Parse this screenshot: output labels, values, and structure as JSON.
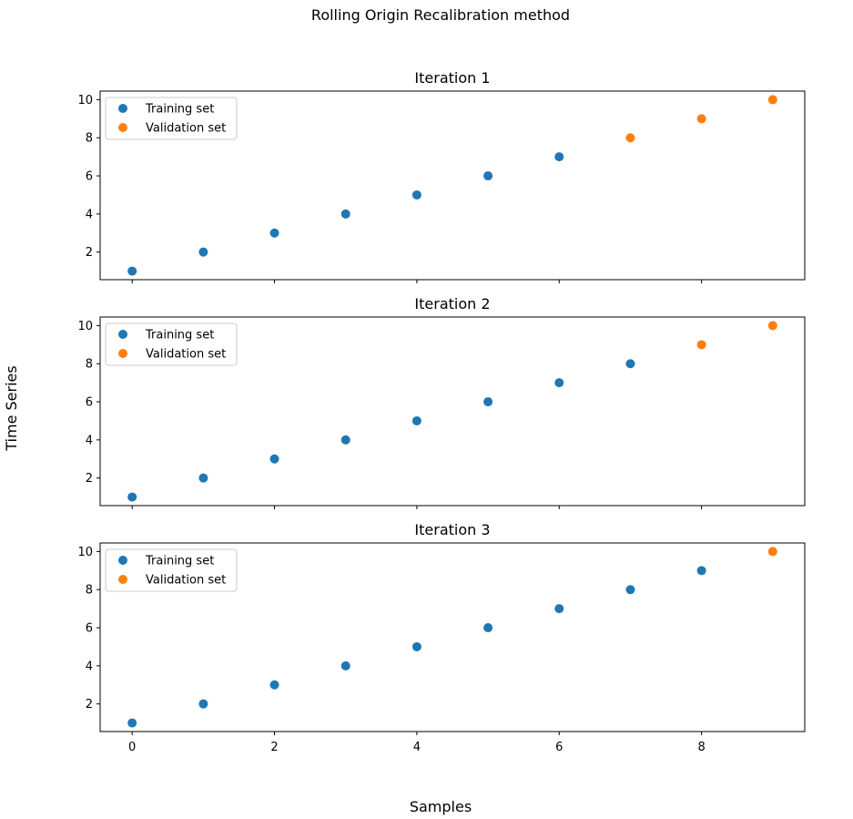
{
  "chart_data": {
    "type": "scatter",
    "title": "Rolling Origin Recalibration method",
    "xlabel": "Samples",
    "ylabel": "Time Series",
    "xlim": [
      -0.45,
      9.45
    ],
    "ylim": [
      0.55,
      10.45
    ],
    "xticks": [
      0,
      2,
      4,
      6,
      8
    ],
    "yticks": [
      2,
      4,
      6,
      8,
      10
    ],
    "grid": false,
    "legend_placement": "top-left",
    "colors": {
      "training": "#1f77b4",
      "validation": "#ff7f0e"
    },
    "subplots": [
      {
        "title": "Iteration 1",
        "series": [
          {
            "name": "Training set",
            "x": [
              0,
              1,
              2,
              3,
              4,
              5,
              6
            ],
            "y": [
              1,
              2,
              3,
              4,
              5,
              6,
              7
            ]
          },
          {
            "name": "Validation set",
            "x": [
              7,
              8,
              9
            ],
            "y": [
              8,
              9,
              10
            ]
          }
        ]
      },
      {
        "title": "Iteration 2",
        "series": [
          {
            "name": "Training set",
            "x": [
              0,
              1,
              2,
              3,
              4,
              5,
              6,
              7
            ],
            "y": [
              1,
              2,
              3,
              4,
              5,
              6,
              7,
              8
            ]
          },
          {
            "name": "Validation set",
            "x": [
              8,
              9
            ],
            "y": [
              9,
              10
            ]
          }
        ]
      },
      {
        "title": "Iteration 3",
        "series": [
          {
            "name": "Training set",
            "x": [
              0,
              1,
              2,
              3,
              4,
              5,
              6,
              7,
              8
            ],
            "y": [
              1,
              2,
              3,
              4,
              5,
              6,
              7,
              8,
              9
            ]
          },
          {
            "name": "Validation set",
            "x": [
              9
            ],
            "y": [
              10
            ]
          }
        ]
      }
    ]
  }
}
